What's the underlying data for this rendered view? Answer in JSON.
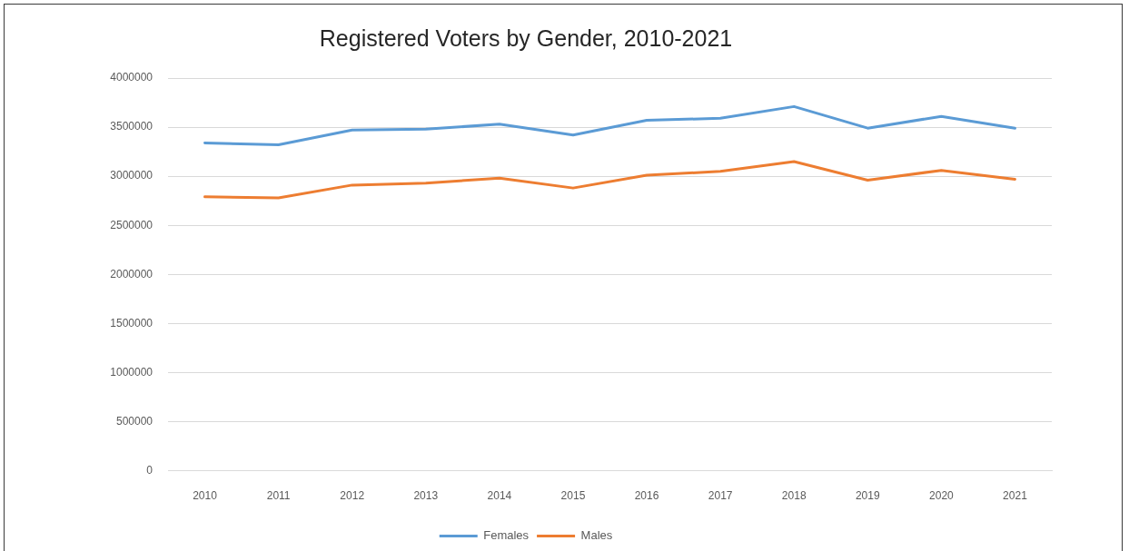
{
  "chart_data": {
    "type": "line",
    "title": "Registered Voters by Gender, 2010-2021",
    "categories": [
      "2010",
      "2011",
      "2012",
      "2013",
      "2014",
      "2015",
      "2016",
      "2017",
      "2018",
      "2019",
      "2020",
      "2021"
    ],
    "series": [
      {
        "name": "Females",
        "color": "#5b9bd5",
        "values": [
          3340000,
          3320000,
          3470000,
          3480000,
          3530000,
          3420000,
          3570000,
          3590000,
          3710000,
          3490000,
          3610000,
          3490000
        ]
      },
      {
        "name": "Males",
        "color": "#ed7d31",
        "values": [
          2790000,
          2780000,
          2910000,
          2930000,
          2980000,
          2880000,
          3010000,
          3050000,
          3150000,
          2960000,
          3060000,
          2970000
        ]
      }
    ],
    "ylim": [
      0,
      4000000
    ],
    "yticks": [
      0,
      500000,
      1000000,
      1500000,
      2000000,
      2500000,
      3000000,
      3500000,
      4000000
    ],
    "grid": "y",
    "legend": "bottom",
    "marker": "none",
    "line_style": "solid"
  }
}
